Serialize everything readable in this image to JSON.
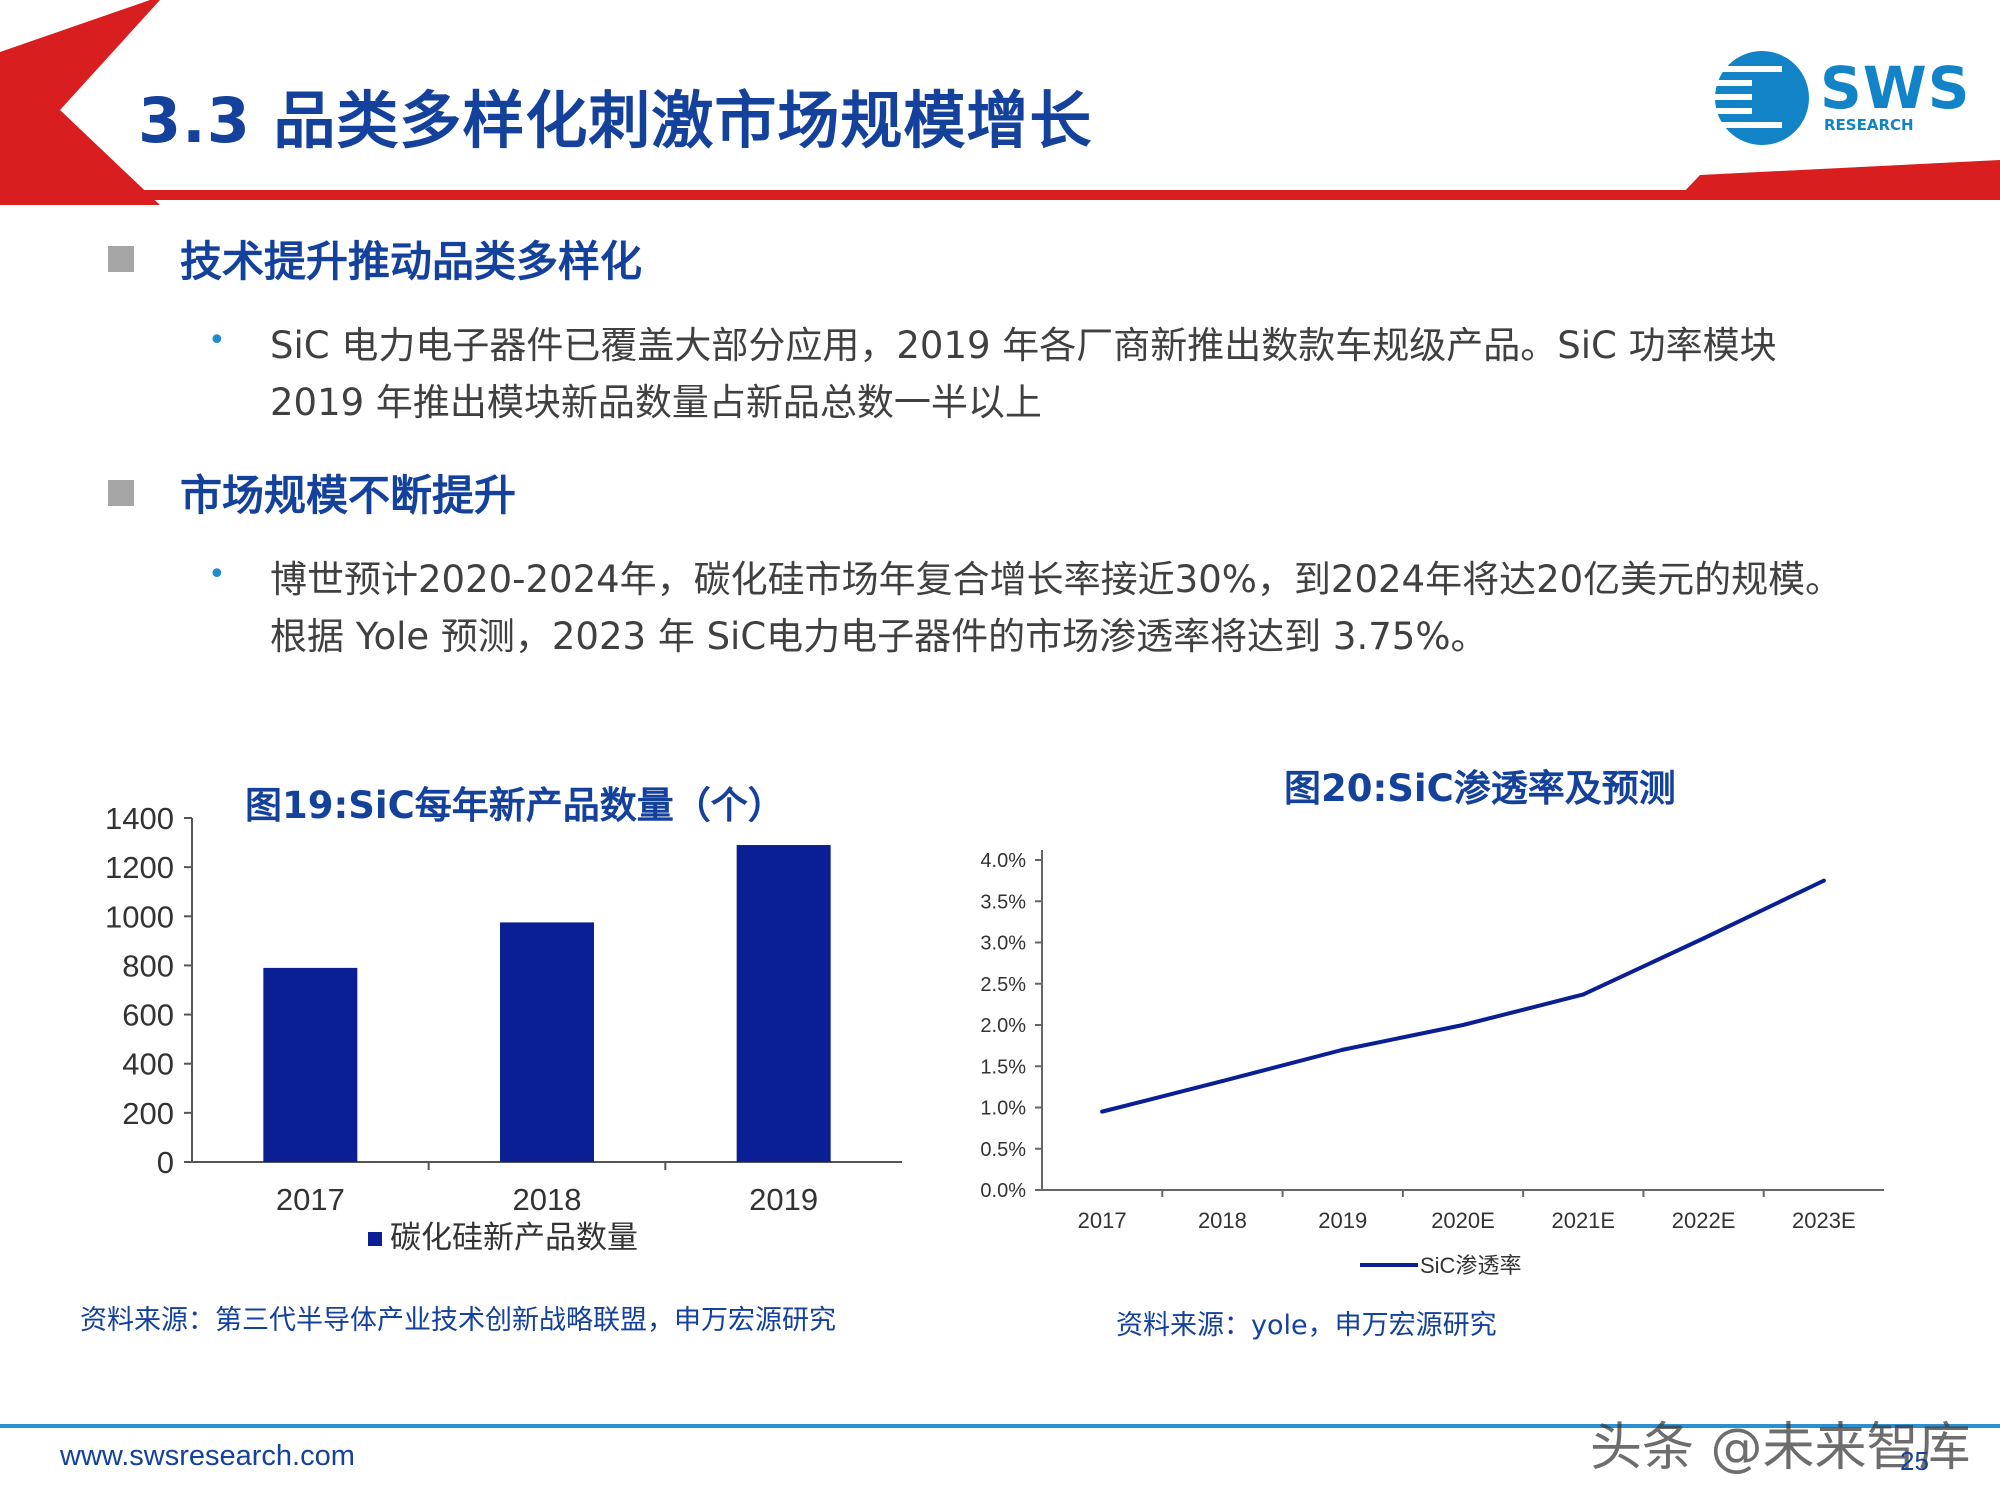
{
  "slide": {
    "title": "3.3 品类多样化刺激市场规模增长",
    "colors": {
      "accent_red": "#d81e1e",
      "title_blue": "#14419b",
      "bar_blue": "#0a1f93",
      "logo_blue": "#1283c6"
    }
  },
  "logo": {
    "name": "SWS",
    "sub": "RESEARCH"
  },
  "sections": [
    {
      "heading": "技术提升推动品类多样化",
      "bullet_lines": [
        "SiC 电力电子器件已覆盖大部分应用，2019 年各厂商新推出数款车规级产品。SiC 功率模块",
        "2019 年推出模块新品数量占新品总数一半以上"
      ]
    },
    {
      "heading": "市场规模不断提升",
      "bullet_lines": [
        "博世预计2020-2024年，碳化硅市场年复合增长率接近30%，到2024年将达20亿美元的规模。",
        "根据 Yole 预测，2023 年 SiC电力电子器件的市场渗透率将达到 3.75%。"
      ]
    }
  ],
  "chart_data": [
    {
      "type": "bar",
      "title": "图19:SiC每年新产品数量（个）",
      "categories": [
        "2017",
        "2018",
        "2019"
      ],
      "series": [
        {
          "name": "碳化硅新产品数量",
          "values": [
            790,
            975,
            1290
          ]
        }
      ],
      "ylim": [
        0,
        1400
      ],
      "yticks": [
        "0",
        "200",
        "400",
        "600",
        "800",
        "1000",
        "1200",
        "1400"
      ],
      "legend": "bottom",
      "grid": false
    },
    {
      "type": "line",
      "title": "图20:SiC渗透率及预测",
      "categories": [
        "2017",
        "2018",
        "2019",
        "2020E",
        "2021E",
        "2022E",
        "2023E"
      ],
      "series": [
        {
          "name": "SiC渗透率",
          "values": [
            0.95,
            1.32,
            1.7,
            2.0,
            2.37,
            3.05,
            3.75
          ]
        }
      ],
      "ylim": [
        0,
        4.0
      ],
      "yticks": [
        "0.0%",
        "0.5%",
        "1.0%",
        "1.5%",
        "2.0%",
        "2.5%",
        "3.0%",
        "3.5%",
        "4.0%"
      ],
      "legend": "bottom",
      "grid": false
    }
  ],
  "sources": {
    "chart19": "资料来源：第三代半导体产业技术创新战略联盟，申万宏源研究",
    "chart20": "资料来源：yole，申万宏源研究"
  },
  "footer": {
    "url": "www.swsresearch.com",
    "page": "25",
    "watermark": "头条 @未来智库"
  }
}
